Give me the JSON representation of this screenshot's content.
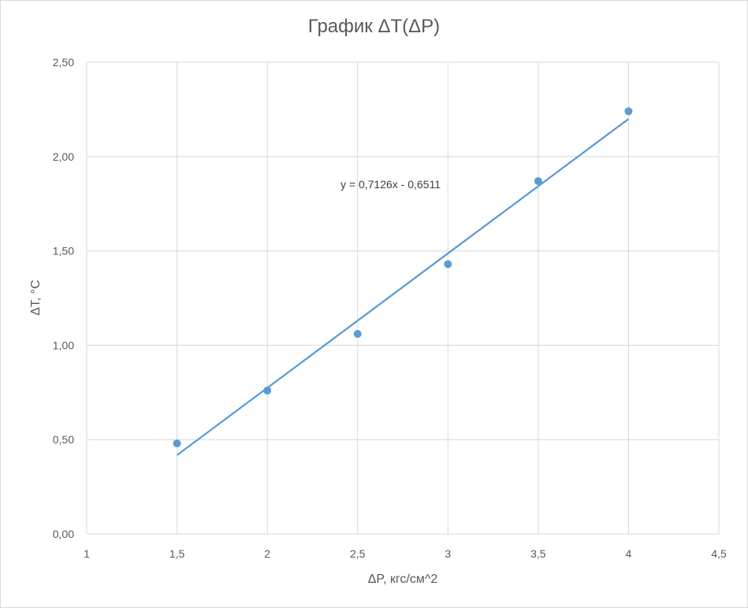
{
  "chart_data": {
    "type": "scatter",
    "title": "График ΔT(ΔP)",
    "xlabel": "ΔP, кгс/см^2",
    "ylabel": "ΔT, °C",
    "xlim": [
      1,
      4.5
    ],
    "ylim": [
      0,
      2.5
    ],
    "x_ticks": [
      "1",
      "1,5",
      "2",
      "2,5",
      "3",
      "3,5",
      "4",
      "4,5"
    ],
    "y_ticks": [
      "0,00",
      "0,50",
      "1,00",
      "1,50",
      "2,00",
      "2,50"
    ],
    "x_tick_values": [
      1,
      1.5,
      2,
      2.5,
      3,
      3.5,
      4,
      4.5
    ],
    "y_tick_values": [
      0,
      0.5,
      1,
      1.5,
      2,
      2.5
    ],
    "grid": true,
    "series": [
      {
        "x": [
          1.5,
          2,
          2.5,
          3,
          3.5,
          4
        ],
        "y": [
          0.48,
          0.76,
          1.06,
          1.43,
          1.87,
          2.24
        ],
        "color": "#5b9bd5"
      }
    ],
    "trendline": {
      "slope": 0.7126,
      "intercept": -0.6511,
      "x_range": [
        1.5,
        4
      ],
      "equation": "y = 0,7126x - 0,6511",
      "color": "#5b9bd5"
    }
  }
}
